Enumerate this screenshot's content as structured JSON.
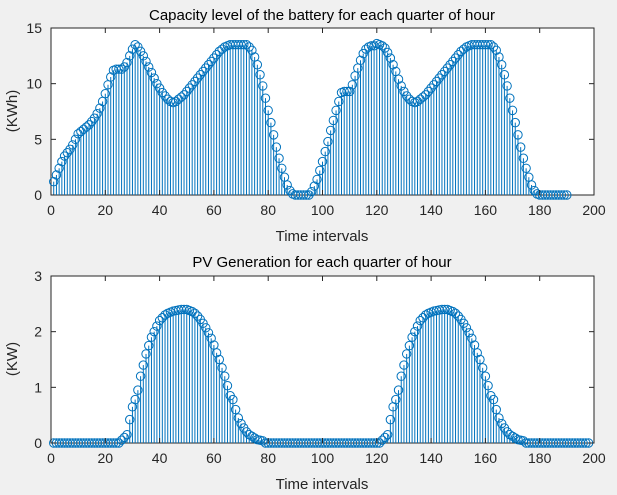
{
  "style": {
    "stem_color": "#0072bd",
    "axis_color": "#262626",
    "background": "#f0f0f0"
  },
  "chart_data": [
    {
      "type": "stem",
      "title": "Capacity level of the battery for each quarter of hour",
      "xlabel": "Time intervals",
      "ylabel": "(KWh)",
      "xlim": [
        0,
        200
      ],
      "ylim": [
        0,
        15
      ],
      "xticks": [
        "0",
        "20",
        "40",
        "60",
        "80",
        "100",
        "120",
        "140",
        "160",
        "180",
        "200"
      ],
      "yticks": [
        "0",
        "5",
        "10",
        "15"
      ],
      "x_start": 1,
      "values": [
        1.2,
        1.8,
        2.4,
        3.0,
        3.5,
        3.8,
        4.1,
        4.5,
        5.0,
        5.5,
        5.7,
        5.9,
        6.1,
        6.3,
        6.6,
        6.9,
        7.3,
        7.8,
        8.4,
        9.1,
        9.9,
        10.6,
        11.2,
        11.3,
        11.3,
        11.3,
        11.5,
        11.9,
        12.5,
        13.1,
        13.5,
        13.3,
        12.9,
        12.5,
        12.0,
        11.5,
        11.0,
        10.5,
        10.0,
        9.6,
        9.2,
        8.9,
        8.6,
        8.4,
        8.3,
        8.4,
        8.6,
        8.8,
        9.0,
        9.3,
        9.6,
        9.9,
        10.2,
        10.5,
        10.8,
        11.1,
        11.4,
        11.7,
        12.0,
        12.3,
        12.6,
        12.9,
        13.1,
        13.3,
        13.4,
        13.5,
        13.5,
        13.5,
        13.5,
        13.5,
        13.5,
        13.5,
        13.3,
        13.0,
        12.4,
        11.7,
        10.8,
        9.8,
        8.7,
        7.6,
        6.5,
        5.4,
        4.3,
        3.3,
        2.4,
        1.6,
        0.9,
        0.4,
        0.1,
        0.0,
        0.0,
        0.0,
        0.0,
        0.0,
        0.0,
        0.3,
        0.8,
        1.4,
        2.2,
        3.0,
        3.9,
        4.8,
        5.8,
        6.7,
        7.6,
        8.4,
        9.2,
        9.3,
        9.3,
        9.3,
        9.9,
        10.7,
        11.4,
        12.1,
        12.7,
        13.1,
        13.3,
        13.4,
        13.4,
        13.6,
        13.5,
        13.4,
        13.2,
        12.8,
        12.3,
        11.7,
        11.1,
        10.4,
        9.8,
        9.3,
        8.9,
        8.6,
        8.4,
        8.3,
        8.4,
        8.6,
        8.8,
        9.0,
        9.3,
        9.6,
        9.9,
        10.2,
        10.5,
        10.8,
        11.1,
        11.4,
        11.7,
        12.0,
        12.3,
        12.6,
        12.9,
        13.1,
        13.3,
        13.4,
        13.5,
        13.5,
        13.5,
        13.5,
        13.5,
        13.5,
        13.5,
        13.5,
        13.3,
        13.0,
        12.4,
        11.7,
        10.8,
        9.8,
        8.7,
        7.6,
        6.5,
        5.4,
        4.3,
        3.3,
        2.4,
        1.6,
        0.9,
        0.4,
        0.1,
        0.0,
        0.0,
        0.0,
        0.0,
        0.0,
        0.0,
        0.0,
        0.0,
        0.0,
        0.0,
        0.0
      ]
    },
    {
      "type": "stem",
      "title": "PV Generation for each quarter of hour",
      "xlabel": "Time intervals",
      "ylabel": "(KW)",
      "xlim": [
        0,
        200
      ],
      "ylim": [
        0,
        3
      ],
      "xticks": [
        "0",
        "20",
        "40",
        "60",
        "80",
        "100",
        "120",
        "140",
        "160",
        "180",
        "200"
      ],
      "yticks": [
        "0",
        "1",
        "2",
        "3"
      ],
      "x_start": 1,
      "values": [
        0.0,
        0.0,
        0.0,
        0.0,
        0.0,
        0.0,
        0.0,
        0.0,
        0.0,
        0.0,
        0.0,
        0.0,
        0.0,
        0.0,
        0.0,
        0.0,
        0.0,
        0.0,
        0.0,
        0.0,
        0.0,
        0.0,
        0.0,
        0.0,
        0.0,
        0.05,
        0.1,
        0.15,
        0.42,
        0.65,
        0.78,
        0.95,
        1.2,
        1.4,
        1.6,
        1.75,
        1.9,
        2.0,
        2.1,
        2.2,
        2.25,
        2.3,
        2.33,
        2.35,
        2.37,
        2.38,
        2.39,
        2.4,
        2.4,
        2.4,
        2.38,
        2.36,
        2.33,
        2.28,
        2.22,
        2.15,
        2.07,
        1.98,
        1.88,
        1.76,
        1.62,
        1.5,
        1.35,
        1.2,
        1.03,
        0.85,
        0.78,
        0.6,
        0.45,
        0.35,
        0.27,
        0.2,
        0.15,
        0.12,
        0.09,
        0.06,
        0.05,
        0.04,
        0.0,
        0.0,
        0.0,
        0.0,
        0.0,
        0.0,
        0.0,
        0.0,
        0.0,
        0.0,
        0.0,
        0.0,
        0.0,
        0.0,
        0.0,
        0.0,
        0.0,
        0.0,
        0.0,
        0.0,
        0.0,
        0.0,
        0.0,
        0.0,
        0.0,
        0.0,
        0.0,
        0.0,
        0.0,
        0.0,
        0.0,
        0.0,
        0.0,
        0.0,
        0.0,
        0.0,
        0.0,
        0.0,
        0.0,
        0.0,
        0.0,
        0.0,
        0.0,
        0.05,
        0.1,
        0.15,
        0.42,
        0.65,
        0.78,
        0.95,
        1.2,
        1.4,
        1.6,
        1.75,
        1.9,
        2.0,
        2.1,
        2.2,
        2.25,
        2.3,
        2.33,
        2.35,
        2.37,
        2.38,
        2.39,
        2.4,
        2.4,
        2.4,
        2.38,
        2.36,
        2.33,
        2.28,
        2.22,
        2.15,
        2.07,
        1.98,
        1.88,
        1.76,
        1.62,
        1.5,
        1.35,
        1.2,
        1.03,
        0.85,
        0.78,
        0.6,
        0.45,
        0.35,
        0.27,
        0.2,
        0.15,
        0.12,
        0.09,
        0.06,
        0.05,
        0.04,
        0.0,
        0.0,
        0.0,
        0.0,
        0.0,
        0.0,
        0.0,
        0.0,
        0.0,
        0.0,
        0.0,
        0.0,
        0.0,
        0.0,
        0.0,
        0.0,
        0.0,
        0.0,
        0.0,
        0.0,
        0.0,
        0.0,
        0.0,
        0.0
      ]
    }
  ]
}
